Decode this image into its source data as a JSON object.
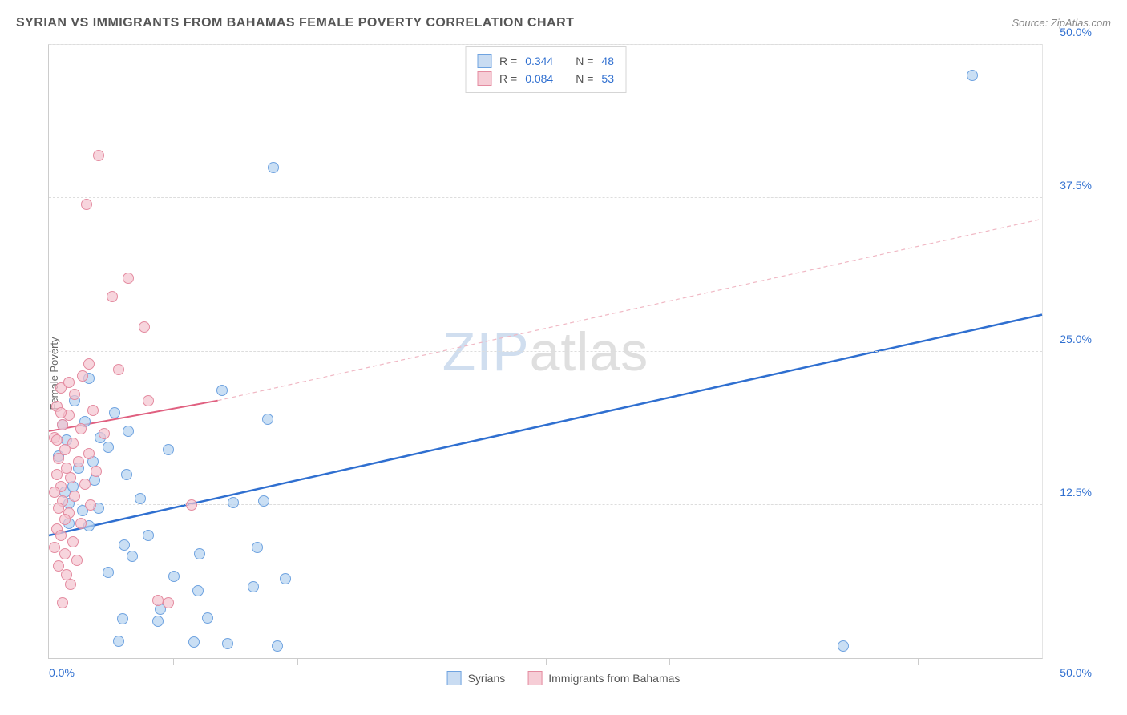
{
  "title": "SYRIAN VS IMMIGRANTS FROM BAHAMAS FEMALE POVERTY CORRELATION CHART",
  "source": "Source: ZipAtlas.com",
  "watermark": {
    "zip": "ZIP",
    "atlas": "atlas"
  },
  "chart": {
    "type": "scatter",
    "ylabel": "Female Poverty",
    "xlim": [
      0,
      50
    ],
    "ylim": [
      0,
      50
    ],
    "x_origin_label": "0.0%",
    "x_max_label": "50.0%",
    "x_tick_positions": [
      6.25,
      12.5,
      18.75,
      25,
      31.25,
      37.5,
      43.75
    ],
    "y_ticks": [
      {
        "value": 12.5,
        "label": "12.5%"
      },
      {
        "value": 25.0,
        "label": "25.0%"
      },
      {
        "value": 37.5,
        "label": "37.5%"
      },
      {
        "value": 50.0,
        "label": "50.0%"
      }
    ],
    "grid_color": "#dddddd",
    "axis_color": "#cccccc",
    "background_color": "#ffffff",
    "legend_top": [
      {
        "swatch_fill": "#c9dcf2",
        "swatch_stroke": "#6fa3e0",
        "r_label": "R =",
        "r_value": "0.344",
        "n_label": "N =",
        "n_value": "48"
      },
      {
        "swatch_fill": "#f6cdd6",
        "swatch_stroke": "#e48ba0",
        "r_label": "R =",
        "r_value": "0.084",
        "n_label": "N =",
        "n_value": "53"
      }
    ],
    "legend_bottom": [
      {
        "swatch_fill": "#c9dcf2",
        "swatch_stroke": "#6fa3e0",
        "label": "Syrians"
      },
      {
        "swatch_fill": "#f6cdd6",
        "swatch_stroke": "#e48ba0",
        "label": "Immigrants from Bahamas"
      }
    ],
    "series": [
      {
        "name": "Syrians",
        "marker_fill": "rgba(180,210,240,0.7)",
        "marker_stroke": "#6fa3e0",
        "marker_radius": 7,
        "trend": {
          "x1": 0,
          "y1": 10.0,
          "x2": 50,
          "y2": 28.0,
          "stroke": "#2f6fd0",
          "width": 2.5,
          "dash": ""
        },
        "points": [
          [
            46.5,
            47.5
          ],
          [
            11.3,
            40.0
          ],
          [
            40.0,
            1.0
          ],
          [
            11.5,
            1.0
          ],
          [
            9.0,
            1.2
          ],
          [
            7.3,
            1.3
          ],
          [
            3.5,
            1.4
          ],
          [
            5.5,
            3.0
          ],
          [
            3.7,
            3.2
          ],
          [
            8.0,
            3.3
          ],
          [
            5.6,
            4.0
          ],
          [
            7.5,
            5.5
          ],
          [
            10.3,
            5.8
          ],
          [
            6.3,
            6.7
          ],
          [
            3.0,
            7.0
          ],
          [
            11.9,
            6.5
          ],
          [
            4.2,
            8.3
          ],
          [
            3.8,
            9.2
          ],
          [
            7.6,
            8.5
          ],
          [
            10.5,
            9.0
          ],
          [
            5.0,
            10.0
          ],
          [
            2.0,
            10.8
          ],
          [
            2.5,
            12.2
          ],
          [
            1.0,
            12.6
          ],
          [
            0.8,
            13.5
          ],
          [
            9.3,
            12.7
          ],
          [
            10.8,
            12.8
          ],
          [
            1.2,
            14.0
          ],
          [
            1.5,
            15.5
          ],
          [
            2.2,
            16.0
          ],
          [
            0.5,
            16.5
          ],
          [
            3.0,
            17.2
          ],
          [
            6.0,
            17.0
          ],
          [
            2.6,
            18.0
          ],
          [
            4.0,
            18.5
          ],
          [
            1.8,
            19.3
          ],
          [
            0.7,
            19.0
          ],
          [
            3.3,
            20.0
          ],
          [
            1.3,
            21.0
          ],
          [
            8.7,
            21.8
          ],
          [
            11.0,
            19.5
          ],
          [
            2.0,
            22.8
          ],
          [
            0.9,
            17.8
          ],
          [
            1.0,
            11.0
          ],
          [
            1.7,
            12.0
          ],
          [
            4.6,
            13.0
          ],
          [
            2.3,
            14.5
          ],
          [
            3.9,
            15.0
          ]
        ]
      },
      {
        "name": "Immigrants from Bahamas",
        "marker_fill": "rgba(244,195,207,0.7)",
        "marker_stroke": "#e48ba0",
        "marker_radius": 7,
        "trend_solid": {
          "x1": 0,
          "y1": 18.5,
          "x2": 8.5,
          "y2": 21.0,
          "stroke": "#e06080",
          "width": 2,
          "dash": ""
        },
        "trend_ext": {
          "x1": 8.5,
          "y1": 21.0,
          "x2": 50,
          "y2": 35.8,
          "stroke": "#f0b8c4",
          "width": 1.2,
          "dash": "5,4"
        },
        "points": [
          [
            2.5,
            41.0
          ],
          [
            1.9,
            37.0
          ],
          [
            4.0,
            31.0
          ],
          [
            3.2,
            29.5
          ],
          [
            4.8,
            27.0
          ],
          [
            2.0,
            24.0
          ],
          [
            3.5,
            23.5
          ],
          [
            0.6,
            22.0
          ],
          [
            1.3,
            21.5
          ],
          [
            5.0,
            21.0
          ],
          [
            0.4,
            20.5
          ],
          [
            2.2,
            20.2
          ],
          [
            1.0,
            19.8
          ],
          [
            0.7,
            19.0
          ],
          [
            1.6,
            18.7
          ],
          [
            2.8,
            18.3
          ],
          [
            0.3,
            18.0
          ],
          [
            1.2,
            17.5
          ],
          [
            0.8,
            17.0
          ],
          [
            2.0,
            16.7
          ],
          [
            0.5,
            16.3
          ],
          [
            1.5,
            16.0
          ],
          [
            0.9,
            15.5
          ],
          [
            2.4,
            15.2
          ],
          [
            0.4,
            15.0
          ],
          [
            1.1,
            14.7
          ],
          [
            1.8,
            14.2
          ],
          [
            0.6,
            14.0
          ],
          [
            0.3,
            13.5
          ],
          [
            1.3,
            13.2
          ],
          [
            0.7,
            12.8
          ],
          [
            2.1,
            12.5
          ],
          [
            0.5,
            12.2
          ],
          [
            1.0,
            11.8
          ],
          [
            0.8,
            11.3
          ],
          [
            1.6,
            11.0
          ],
          [
            0.4,
            10.5
          ],
          [
            0.6,
            10.0
          ],
          [
            1.2,
            9.5
          ],
          [
            0.3,
            9.0
          ],
          [
            0.8,
            8.5
          ],
          [
            1.4,
            8.0
          ],
          [
            0.5,
            7.5
          ],
          [
            0.9,
            6.8
          ],
          [
            1.1,
            6.0
          ],
          [
            7.2,
            12.5
          ],
          [
            0.7,
            4.5
          ],
          [
            5.5,
            4.7
          ],
          [
            6.0,
            4.5
          ],
          [
            0.4,
            17.8
          ],
          [
            0.6,
            20.0
          ],
          [
            1.0,
            22.5
          ],
          [
            1.7,
            23.0
          ]
        ]
      }
    ]
  }
}
